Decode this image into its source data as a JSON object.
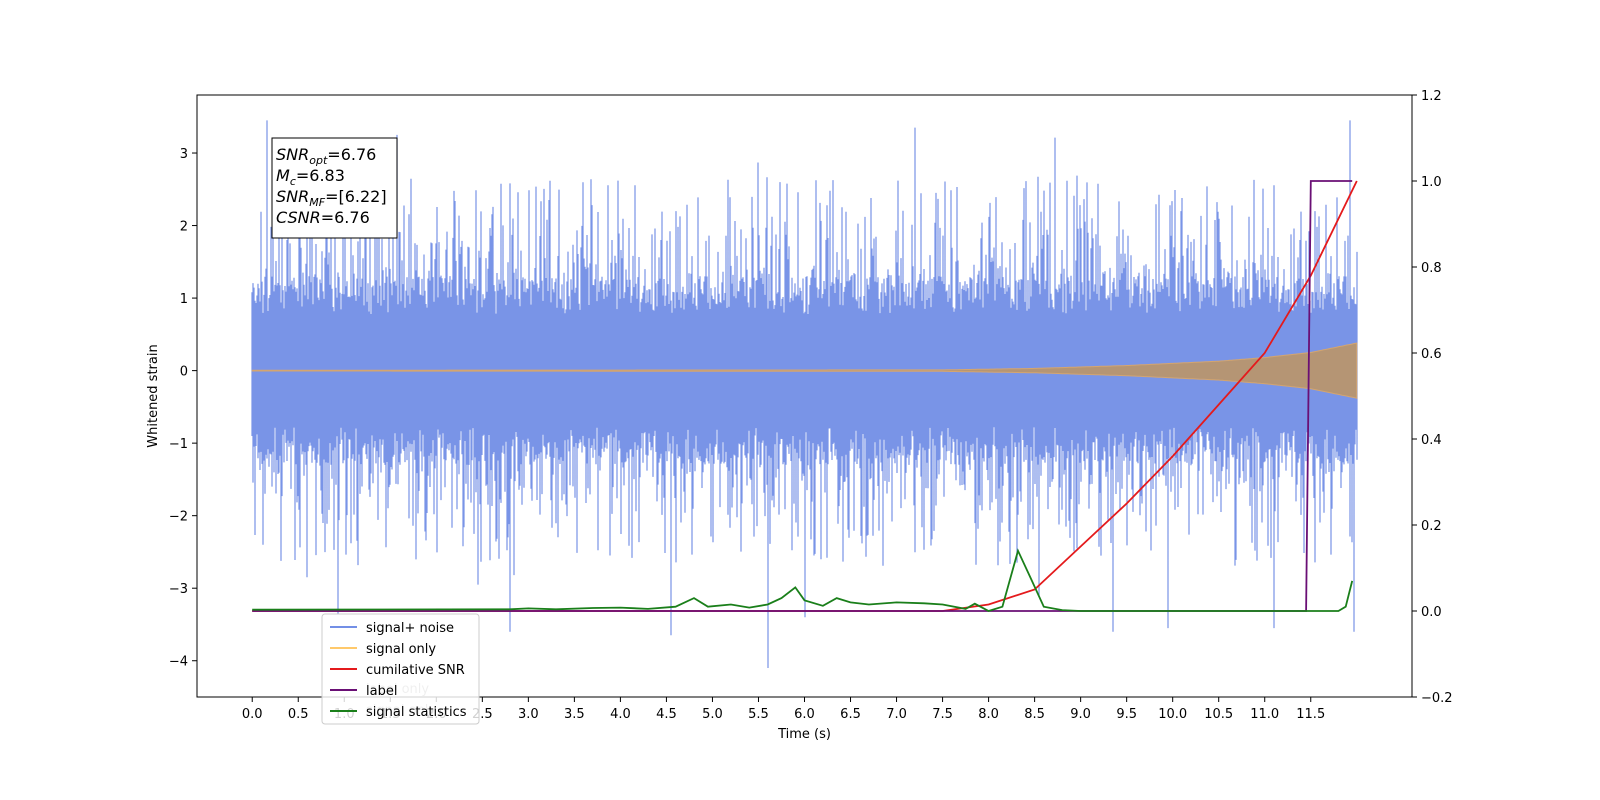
{
  "chart_data": {
    "type": "line",
    "xlabel": "Time (s)",
    "ylabel": "Whitened strain",
    "xlim": [
      -0.6,
      12.6
    ],
    "ylim": [
      -4.5,
      3.8
    ],
    "y2lim": [
      -0.2,
      1.2
    ],
    "x_ticks": [
      "0.0",
      "0.5",
      "1.0",
      "1.5",
      "2.0",
      "2.5",
      "3.0",
      "3.5",
      "4.0",
      "4.5",
      "5.0",
      "5.5",
      "6.0",
      "6.5",
      "7.0",
      "7.5",
      "8.0",
      "8.5",
      "9.0",
      "9.5",
      "10.0",
      "10.5",
      "11.0",
      "11.5"
    ],
    "y_ticks": [
      "3",
      "2",
      "1",
      "0",
      "−1",
      "−2",
      "−3",
      "−4"
    ],
    "y2_ticks": [
      "1.2",
      "1.0",
      "0.8",
      "0.6",
      "0.4",
      "0.2",
      "0.0",
      "−0.2"
    ],
    "annotation": {
      "lines": [
        {
          "name": "SNR",
          "sub": "opt",
          "value": "=6.76"
        },
        {
          "name": "M",
          "sub": "c",
          "value": "=6.83"
        },
        {
          "name": "SNR",
          "sub": "MF",
          "value": "=[6.22]"
        },
        {
          "name": "CSNR",
          "sub": "",
          "value": "=6.76"
        }
      ]
    },
    "legend": {
      "placement": "lower-left",
      "entries": [
        "signal+ noise",
        "signal only",
        "cumilative SNR",
        "label",
        "signal statistics"
      ],
      "hidden_entries": [
        "label only",
        "signal only"
      ]
    },
    "series": [
      {
        "name": "signal+ noise",
        "axis": "left",
        "color": "#5b7ce2",
        "kind": "noise",
        "x_range": [
          0.0,
          12.0
        ],
        "envelope": [
          -1.3,
          1.3
        ],
        "spikes": [
          {
            "x": 0.16,
            "y": 3.45
          },
          {
            "x": 0.6,
            "y": -2.85
          },
          {
            "x": 0.93,
            "y": -3.35
          },
          {
            "x": 1.57,
            "y": 3.25
          },
          {
            "x": 2.45,
            "y": -2.95
          },
          {
            "x": 2.8,
            "y": -3.6
          },
          {
            "x": 4.55,
            "y": -3.65
          },
          {
            "x": 5.6,
            "y": -4.1
          },
          {
            "x": 6.0,
            "y": -3.4
          },
          {
            "x": 7.2,
            "y": 3.35
          },
          {
            "x": 8.55,
            "y": -3.1
          },
          {
            "x": 9.35,
            "y": -3.6
          },
          {
            "x": 9.95,
            "y": -3.55
          },
          {
            "x": 11.1,
            "y": -3.55
          },
          {
            "x": 11.93,
            "y": 3.45
          },
          {
            "x": 11.97,
            "y": -3.6
          }
        ]
      },
      {
        "name": "signal only",
        "axis": "left",
        "color": "#e8b27a",
        "kind": "chirp",
        "x_range": [
          0.0,
          12.0
        ],
        "amplitude": [
          [
            0,
            0.005
          ],
          [
            7.5,
            0.01
          ],
          [
            8.5,
            0.03
          ],
          [
            9.5,
            0.07
          ],
          [
            10.5,
            0.13
          ],
          [
            11.0,
            0.18
          ],
          [
            11.5,
            0.25
          ],
          [
            12.0,
            0.38
          ]
        ]
      },
      {
        "name": "cumilative SNR",
        "axis": "right",
        "color": "#e41a1c",
        "points": [
          [
            0.0,
            0.0
          ],
          [
            7.5,
            0.0
          ],
          [
            8.0,
            0.015
          ],
          [
            8.5,
            0.05
          ],
          [
            9.0,
            0.15
          ],
          [
            9.5,
            0.25
          ],
          [
            10.0,
            0.36
          ],
          [
            10.5,
            0.48
          ],
          [
            11.0,
            0.6
          ],
          [
            11.5,
            0.78
          ],
          [
            12.0,
            1.0
          ]
        ]
      },
      {
        "name": "label",
        "axis": "right",
        "color": "#6a0f75",
        "points": [
          [
            0.0,
            0.0
          ],
          [
            11.45,
            0.0
          ],
          [
            11.5,
            1.0
          ],
          [
            11.95,
            1.0
          ]
        ]
      },
      {
        "name": "signal statistics",
        "axis": "right",
        "color": "#1a7f1a",
        "points": [
          [
            0.0,
            0.003
          ],
          [
            2.8,
            0.004
          ],
          [
            3.0,
            0.006
          ],
          [
            3.3,
            0.004
          ],
          [
            3.7,
            0.007
          ],
          [
            4.0,
            0.008
          ],
          [
            4.3,
            0.005
          ],
          [
            4.6,
            0.01
          ],
          [
            4.8,
            0.03
          ],
          [
            4.95,
            0.01
          ],
          [
            5.2,
            0.015
          ],
          [
            5.4,
            0.008
          ],
          [
            5.6,
            0.015
          ],
          [
            5.75,
            0.03
          ],
          [
            5.9,
            0.055
          ],
          [
            6.0,
            0.025
          ],
          [
            6.2,
            0.012
          ],
          [
            6.35,
            0.03
          ],
          [
            6.5,
            0.02
          ],
          [
            6.7,
            0.015
          ],
          [
            7.0,
            0.02
          ],
          [
            7.3,
            0.018
          ],
          [
            7.5,
            0.015
          ],
          [
            7.75,
            0.005
          ],
          [
            7.85,
            0.017
          ],
          [
            8.0,
            0.0
          ],
          [
            8.15,
            0.01
          ],
          [
            8.32,
            0.14
          ],
          [
            8.45,
            0.08
          ],
          [
            8.6,
            0.01
          ],
          [
            8.8,
            0.002
          ],
          [
            9.0,
            0.0
          ],
          [
            11.8,
            0.0
          ],
          [
            11.88,
            0.01
          ],
          [
            11.95,
            0.07
          ]
        ]
      }
    ]
  }
}
